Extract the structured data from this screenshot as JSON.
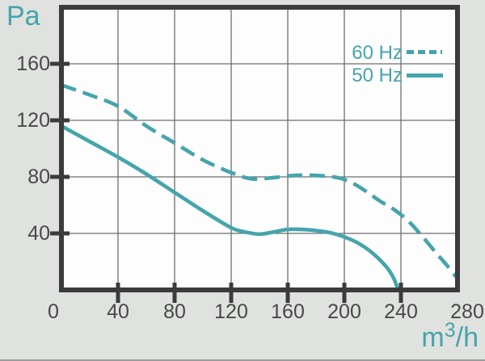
{
  "page": {
    "y_axis_unit": "Pa",
    "x_axis_unit": {
      "base": "m",
      "sup": "3",
      "rest": "/h"
    }
  },
  "colors": {
    "accent_teal": "#45A4AC",
    "axis_dark": "#3B3B3D",
    "grid_line": "#6E6E6E",
    "tick_label": "#484848",
    "plot_background": "#FDFDFD",
    "page_background": "#E0E2E0"
  },
  "chart_data": {
    "type": "line",
    "title": "",
    "xlabel": "m³/h",
    "ylabel": "Pa",
    "xlim": [
      0,
      280
    ],
    "ylim": [
      0,
      200
    ],
    "xticks": [
      0,
      40,
      80,
      120,
      160,
      200,
      240,
      280
    ],
    "yticks": [
      40,
      80,
      120,
      160
    ],
    "grid": true,
    "legend_position": "top-right-inside",
    "series": [
      {
        "name": "60 Hz",
        "style": "dashed",
        "points": [
          [
            0,
            145
          ],
          [
            20,
            138
          ],
          [
            40,
            130
          ],
          [
            60,
            116
          ],
          [
            80,
            104
          ],
          [
            100,
            92
          ],
          [
            120,
            83
          ],
          [
            135,
            78.5
          ],
          [
            150,
            79.5
          ],
          [
            165,
            81
          ],
          [
            180,
            81
          ],
          [
            195,
            79.5
          ],
          [
            205,
            76
          ],
          [
            215,
            70
          ],
          [
            225,
            63
          ],
          [
            235,
            57
          ],
          [
            245,
            49
          ],
          [
            255,
            38
          ],
          [
            265,
            26
          ],
          [
            272,
            18
          ],
          [
            280,
            8
          ]
        ]
      },
      {
        "name": "50 Hz",
        "style": "solid",
        "points": [
          [
            0,
            116
          ],
          [
            20,
            105
          ],
          [
            40,
            94
          ],
          [
            60,
            82
          ],
          [
            80,
            69
          ],
          [
            100,
            56
          ],
          [
            120,
            44
          ],
          [
            130,
            41
          ],
          [
            140,
            39.5
          ],
          [
            150,
            41
          ],
          [
            160,
            42.8
          ],
          [
            170,
            42.8
          ],
          [
            180,
            42
          ],
          [
            190,
            40.5
          ],
          [
            200,
            37.5
          ],
          [
            210,
            33
          ],
          [
            220,
            26
          ],
          [
            230,
            16
          ],
          [
            235,
            8
          ],
          [
            238,
            0
          ]
        ]
      }
    ]
  }
}
